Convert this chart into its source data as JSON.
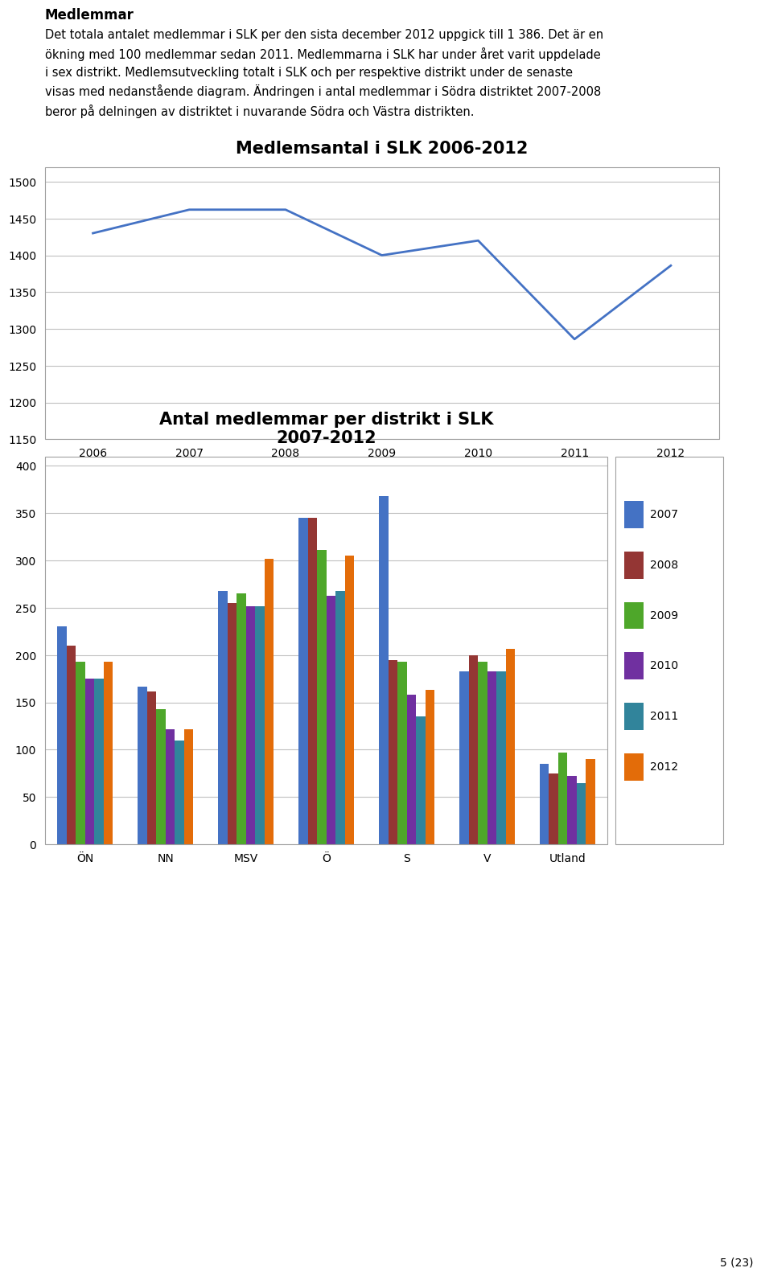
{
  "text_title": "Medlemmar",
  "text_body_lines": [
    "Det totala antalet medlemmar i SLK per den sista december 2012 uppgick till 1 386. Det är en",
    "ökning med 100 medlemmar sedan 2011. Medlemmarna i SLK har under året varit uppdelade",
    "i sex distrikt. Medlemsutveckling totalt i SLK och per respektive distrikt under de senaste",
    "visas med nedanstående diagram. Ändringen i antal medlemmar i Södra distriktet 2007-2008",
    "beror på delningen av distriktet i nuvarande Södra och Västra distrikten."
  ],
  "line_title": "Medlemsantal i SLK 2006-2012",
  "line_years": [
    2006,
    2007,
    2008,
    2009,
    2010,
    2011,
    2012
  ],
  "line_values": [
    1430,
    1462,
    1462,
    1400,
    1420,
    1286,
    1386
  ],
  "line_color": "#4472C4",
  "line_ylim": [
    1150,
    1520
  ],
  "line_yticks": [
    1150,
    1200,
    1250,
    1300,
    1350,
    1400,
    1450,
    1500
  ],
  "bar_title_line1": "Antal medlemmar per distrikt i SLK",
  "bar_title_line2": "2007-2012",
  "bar_categories": [
    "ÖN",
    "NN",
    "MSV",
    "Ö",
    "S",
    "V",
    "Utland"
  ],
  "bar_years": [
    "2007",
    "2008",
    "2009",
    "2010",
    "2011",
    "2012"
  ],
  "bar_colors": [
    "#4472C4",
    "#943634",
    "#4EA72A",
    "#7030A0",
    "#31849B",
    "#E36C09"
  ],
  "bar_data": {
    "2007": [
      230,
      167,
      268,
      345,
      368,
      183,
      85
    ],
    "2008": [
      210,
      162,
      255,
      345,
      195,
      200,
      75
    ],
    "2009": [
      193,
      143,
      265,
      311,
      193,
      193,
      97
    ],
    "2010": [
      175,
      122,
      252,
      263,
      158,
      183,
      72
    ],
    "2011": [
      175,
      110,
      252,
      268,
      135,
      183,
      65
    ],
    "2012": [
      193,
      122,
      302,
      305,
      163,
      207,
      90
    ]
  },
  "bar_ylim": [
    0,
    410
  ],
  "bar_yticks": [
    0,
    50,
    100,
    150,
    200,
    250,
    300,
    350,
    400
  ],
  "page_number": "5 (23)",
  "background_color": "#FFFFFF",
  "grid_color": "#C0C0C0",
  "border_color": "#A0A0A0"
}
